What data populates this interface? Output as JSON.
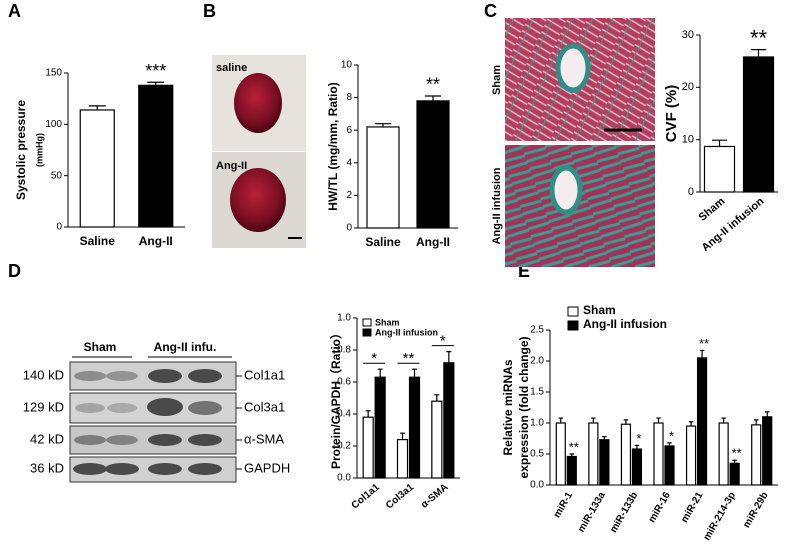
{
  "figure": {
    "panels": [
      "A",
      "B",
      "C",
      "D",
      "E"
    ],
    "heart_labels": [
      "saline",
      "Ang-II"
    ],
    "tissue_labels": [
      "Sham",
      "Ang-II infusion"
    ],
    "blot": {
      "groups": [
        "Sham",
        "Ang-II infu."
      ],
      "sizes": [
        "140 kD",
        "129 kD",
        "42 kD",
        "36 kD"
      ],
      "proteins": [
        "Col1a1",
        "Col3a1",
        "α-SMA",
        "GAPDH"
      ]
    }
  },
  "chart_data": [
    {
      "type": "bar",
      "ylabel": "Systolic pressure",
      "ylabel_line2": "(mmHg)",
      "categories": [
        "Saline",
        "Ang-II"
      ],
      "values": [
        114,
        138
      ],
      "errors": [
        4,
        3
      ],
      "colors": [
        "#ffffff",
        "#000000"
      ],
      "ylim": [
        0,
        150
      ],
      "yticks": [
        0,
        50,
        100,
        150
      ],
      "annotation": "***"
    },
    {
      "type": "bar",
      "ylabel": "HW/TL  (mg/mm, Ratio)",
      "categories": [
        "Saline",
        "Ang-II"
      ],
      "values": [
        6.2,
        7.8
      ],
      "errors": [
        0.2,
        0.3
      ],
      "colors": [
        "#ffffff",
        "#000000"
      ],
      "ylim": [
        0,
        10
      ],
      "yticks": [
        0,
        2,
        4,
        6,
        8,
        10
      ],
      "annotation": "**"
    },
    {
      "type": "bar",
      "ylabel": "CVF  (%)",
      "categories": [
        "Sham",
        "Ang-II infusion"
      ],
      "values": [
        8.7,
        25.8
      ],
      "errors": [
        1.2,
        1.4
      ],
      "colors": [
        "#ffffff",
        "#000000"
      ],
      "ylim": [
        0,
        30
      ],
      "yticks": [
        0,
        10,
        20,
        30
      ],
      "annotation": "**"
    },
    {
      "type": "grouped_bar",
      "ylabel": "Protein/GAPDH（Ratio）",
      "categories": [
        "Col1a1",
        "Col3a1",
        "α-SMA"
      ],
      "series": [
        {
          "name": "Sham",
          "color": "#ffffff",
          "values": [
            0.38,
            0.24,
            0.48
          ],
          "errors": [
            0.04,
            0.04,
            0.04
          ]
        },
        {
          "name": "Ang-II infusion",
          "color": "#000000",
          "values": [
            0.63,
            0.63,
            0.72
          ],
          "errors": [
            0.05,
            0.05,
            0.07
          ]
        }
      ],
      "ylim": [
        0,
        1.0
      ],
      "yticks": [
        {
          "value": 0,
          "label": "0.0"
        },
        {
          "value": 0.2,
          "label": "0.2"
        },
        {
          "value": 0.4,
          "label": "0.4"
        },
        {
          "value": 0.6,
          "label": "0.6"
        },
        {
          "value": 0.8,
          "label": "0.8"
        },
        {
          "value": 1.0,
          "label": "1.0"
        }
      ],
      "stars": [
        "*",
        "**",
        "*"
      ]
    },
    {
      "type": "grouped_bar",
      "ylabel": "Relative miRNAs",
      "ylabel_line2": "expression (fold change)",
      "categories": [
        "miR-1",
        "miR-133a",
        "miR-133b",
        "miR-16",
        "miR-21",
        "miR-214-3p",
        "miR-29b"
      ],
      "series": [
        {
          "name": "Sham",
          "color": "#ffffff",
          "values": [
            1.0,
            1.0,
            0.98,
            1.0,
            0.95,
            1.0,
            0.97
          ],
          "errors": [
            0.08,
            0.08,
            0.07,
            0.08,
            0.07,
            0.08,
            0.08
          ]
        },
        {
          "name": "Ang-II infusion",
          "color": "#000000",
          "values": [
            0.46,
            0.73,
            0.58,
            0.63,
            2.05,
            0.35,
            1.1
          ],
          "errors": [
            0.04,
            0.05,
            0.06,
            0.05,
            0.12,
            0.05,
            0.08
          ]
        }
      ],
      "ylim": [
        0,
        2.5
      ],
      "yticks": [
        {
          "value": 0,
          "label": "0.0"
        },
        {
          "value": 0.5,
          "label": "0.5"
        },
        {
          "value": 1.0,
          "label": "1.0"
        },
        {
          "value": 1.5,
          "label": "1.5"
        },
        {
          "value": 2.0,
          "label": "2.0"
        },
        {
          "value": 2.5,
          "label": "2.5"
        }
      ],
      "stars": [
        "**",
        null,
        "*",
        "*",
        "**",
        "**",
        null
      ]
    }
  ]
}
